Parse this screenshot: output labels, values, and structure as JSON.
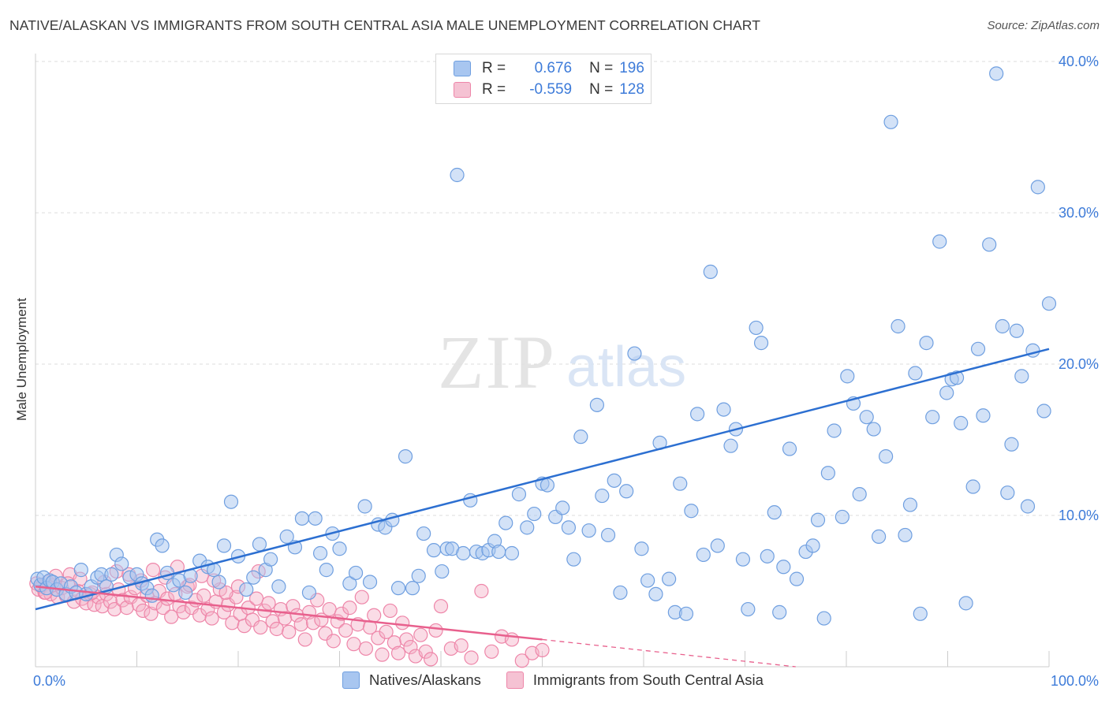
{
  "title": "NATIVE/ALASKAN VS IMMIGRANTS FROM SOUTH CENTRAL ASIA MALE UNEMPLOYMENT CORRELATION CHART",
  "source": "Source: ZipAtlas.com",
  "watermark": {
    "zip": "ZIP",
    "atlas": "atlas"
  },
  "stats": {
    "r_label": "R =",
    "n_label": "N =",
    "blue": {
      "r": "0.676",
      "n": "196"
    },
    "pink": {
      "r": "-0.559",
      "n": "128"
    }
  },
  "legend": {
    "blue": "Natives/Alaskans",
    "pink": "Immigrants from South Central Asia"
  },
  "colors": {
    "blue_fill": "#a8c6f0",
    "blue_stroke": "#6f9fe0",
    "blue_line": "#2c6fd1",
    "pink_fill": "#f5b2c8",
    "pink_stroke": "#ee86a9",
    "pink_line": "#e8608d",
    "grid": "#dddddd",
    "tick_text": "#3d7bd9"
  },
  "chart_data": {
    "type": "scatter",
    "title": "NATIVE/ALASKAN VS IMMIGRANTS FROM SOUTH CENTRAL ASIA MALE UNEMPLOYMENT CORRELATION CHART",
    "xlabel": "",
    "ylabel": "Male Unemployment",
    "xlim": [
      0,
      100
    ],
    "ylim": [
      0,
      40
    ],
    "x_tick_labels": [
      "0.0%",
      "100.0%"
    ],
    "y_ticks": [
      10,
      20,
      30,
      40
    ],
    "y_tick_labels": [
      "10.0%",
      "20.0%",
      "30.0%",
      "40.0%"
    ],
    "series": [
      {
        "name": "Natives/Alaskans",
        "trend": {
          "x": [
            0,
            100
          ],
          "y": [
            3.8,
            21.0
          ],
          "dashed_to": null
        },
        "points": [
          [
            0.2,
            5.8
          ],
          [
            0.5,
            5.4
          ],
          [
            0.8,
            5.9
          ],
          [
            1.1,
            5.2
          ],
          [
            1.4,
            5.7
          ],
          [
            1.7,
            5.6
          ],
          [
            2.1,
            5.1
          ],
          [
            2.5,
            5.5
          ],
          [
            3.0,
            4.8
          ],
          [
            3.5,
            5.3
          ],
          [
            4.0,
            4.9
          ],
          [
            4.5,
            6.4
          ],
          [
            5.0,
            4.8
          ],
          [
            5.5,
            5.3
          ],
          [
            6.1,
            5.9
          ],
          [
            6.5,
            6.1
          ],
          [
            7.0,
            5.3
          ],
          [
            7.5,
            6.1
          ],
          [
            8.0,
            7.4
          ],
          [
            8.5,
            6.8
          ],
          [
            9.3,
            5.9
          ],
          [
            10.0,
            6.1
          ],
          [
            10.5,
            5.5
          ],
          [
            11.0,
            5.2
          ],
          [
            11.5,
            4.7
          ],
          [
            12.0,
            8.4
          ],
          [
            12.5,
            8.0
          ],
          [
            13.0,
            6.2
          ],
          [
            13.6,
            5.4
          ],
          [
            14.2,
            5.7
          ],
          [
            14.8,
            4.9
          ],
          [
            15.3,
            6.0
          ],
          [
            16.2,
            7.0
          ],
          [
            17.0,
            6.6
          ],
          [
            17.6,
            6.4
          ],
          [
            18.1,
            5.6
          ],
          [
            18.6,
            8.0
          ],
          [
            19.3,
            10.9
          ],
          [
            20.0,
            7.3
          ],
          [
            20.8,
            5.1
          ],
          [
            21.5,
            5.9
          ],
          [
            22.1,
            8.1
          ],
          [
            22.7,
            6.4
          ],
          [
            23.2,
            7.1
          ],
          [
            24.0,
            5.3
          ],
          [
            24.8,
            8.6
          ],
          [
            25.6,
            7.9
          ],
          [
            26.3,
            9.8
          ],
          [
            27.0,
            4.9
          ],
          [
            27.6,
            9.8
          ],
          [
            28.1,
            7.5
          ],
          [
            28.7,
            6.4
          ],
          [
            29.3,
            8.8
          ],
          [
            30.0,
            7.8
          ],
          [
            31.0,
            5.5
          ],
          [
            31.6,
            6.2
          ],
          [
            32.5,
            10.6
          ],
          [
            33.0,
            5.6
          ],
          [
            33.8,
            9.4
          ],
          [
            34.5,
            9.2
          ],
          [
            35.2,
            9.7
          ],
          [
            35.8,
            5.2
          ],
          [
            36.5,
            13.9
          ],
          [
            37.2,
            5.2
          ],
          [
            37.8,
            6.0
          ],
          [
            38.3,
            8.8
          ],
          [
            39.3,
            7.7
          ],
          [
            40.1,
            6.3
          ],
          [
            40.6,
            7.8
          ],
          [
            41.1,
            7.8
          ],
          [
            41.6,
            32.5
          ],
          [
            42.2,
            7.5
          ],
          [
            42.9,
            11.0
          ],
          [
            43.5,
            7.6
          ],
          [
            44.1,
            7.5
          ],
          [
            44.7,
            7.7
          ],
          [
            45.3,
            8.3
          ],
          [
            45.7,
            7.6
          ],
          [
            46.4,
            9.5
          ],
          [
            47.0,
            7.5
          ],
          [
            47.7,
            11.4
          ],
          [
            48.5,
            9.2
          ],
          [
            49.2,
            10.1
          ],
          [
            50.0,
            12.1
          ],
          [
            50.5,
            12.0
          ],
          [
            51.3,
            9.9
          ],
          [
            52.0,
            10.5
          ],
          [
            52.6,
            9.2
          ],
          [
            53.1,
            7.1
          ],
          [
            53.8,
            15.2
          ],
          [
            54.6,
            9.0
          ],
          [
            55.4,
            17.3
          ],
          [
            55.9,
            11.3
          ],
          [
            56.5,
            8.7
          ],
          [
            57.1,
            12.3
          ],
          [
            57.7,
            4.9
          ],
          [
            58.3,
            11.6
          ],
          [
            59.1,
            20.7
          ],
          [
            59.8,
            7.8
          ],
          [
            60.4,
            5.7
          ],
          [
            61.2,
            4.8
          ],
          [
            61.6,
            14.8
          ],
          [
            62.5,
            5.8
          ],
          [
            63.1,
            3.6
          ],
          [
            63.6,
            12.1
          ],
          [
            64.2,
            3.5
          ],
          [
            64.7,
            10.3
          ],
          [
            65.3,
            16.7
          ],
          [
            65.9,
            7.4
          ],
          [
            66.6,
            26.1
          ],
          [
            67.3,
            8.0
          ],
          [
            67.9,
            17.0
          ],
          [
            68.6,
            14.6
          ],
          [
            69.1,
            15.7
          ],
          [
            69.8,
            7.1
          ],
          [
            70.3,
            3.8
          ],
          [
            71.1,
            22.4
          ],
          [
            71.6,
            21.4
          ],
          [
            72.2,
            7.3
          ],
          [
            72.9,
            10.2
          ],
          [
            73.4,
            3.6
          ],
          [
            73.8,
            6.6
          ],
          [
            74.4,
            14.4
          ],
          [
            75.1,
            5.8
          ],
          [
            76.0,
            7.6
          ],
          [
            76.7,
            8.0
          ],
          [
            77.2,
            9.7
          ],
          [
            77.8,
            3.2
          ],
          [
            78.2,
            12.8
          ],
          [
            78.8,
            15.6
          ],
          [
            79.6,
            9.9
          ],
          [
            80.1,
            19.2
          ],
          [
            80.7,
            17.4
          ],
          [
            81.3,
            11.4
          ],
          [
            82.0,
            16.5
          ],
          [
            82.7,
            15.7
          ],
          [
            83.2,
            8.6
          ],
          [
            83.9,
            13.9
          ],
          [
            84.4,
            36.0
          ],
          [
            85.1,
            22.5
          ],
          [
            85.8,
            8.7
          ],
          [
            86.3,
            10.7
          ],
          [
            86.8,
            19.4
          ],
          [
            87.3,
            3.5
          ],
          [
            87.9,
            21.4
          ],
          [
            88.5,
            16.5
          ],
          [
            89.2,
            28.1
          ],
          [
            89.9,
            18.1
          ],
          [
            90.4,
            19.0
          ],
          [
            90.9,
            19.1
          ],
          [
            91.3,
            16.1
          ],
          [
            91.8,
            4.2
          ],
          [
            92.5,
            11.9
          ],
          [
            93.0,
            21.0
          ],
          [
            93.5,
            16.6
          ],
          [
            94.1,
            27.9
          ],
          [
            94.8,
            39.2
          ],
          [
            95.4,
            22.5
          ],
          [
            95.9,
            11.5
          ],
          [
            96.3,
            14.7
          ],
          [
            96.8,
            22.2
          ],
          [
            97.3,
            19.2
          ],
          [
            97.9,
            10.6
          ],
          [
            98.4,
            20.9
          ],
          [
            98.9,
            31.7
          ],
          [
            99.5,
            16.9
          ],
          [
            100.0,
            24.0
          ]
        ]
      },
      {
        "name": "Immigrants from South Central Asia",
        "trend": {
          "x": [
            0,
            50
          ],
          "y": [
            5.3,
            1.8
          ],
          "dashed_to": [
            100,
            -1.4
          ]
        },
        "points": [
          [
            0.1,
            5.5
          ],
          [
            0.3,
            5.1
          ],
          [
            0.6,
            5.3
          ],
          [
            0.9,
            4.9
          ],
          [
            1.2,
            5.6
          ],
          [
            1.5,
            4.8
          ],
          [
            1.8,
            5.4
          ],
          [
            2.2,
            4.6
          ],
          [
            2.6,
            5.2
          ],
          [
            3.0,
            4.7
          ],
          [
            3.4,
            6.1
          ],
          [
            3.8,
            4.3
          ],
          [
            4.2,
            5.0
          ],
          [
            4.6,
            4.5
          ],
          [
            5.0,
            4.2
          ],
          [
            5.4,
            4.8
          ],
          [
            5.8,
            4.1
          ],
          [
            6.2,
            4.6
          ],
          [
            6.6,
            4.0
          ],
          [
            7.0,
            4.8
          ],
          [
            7.4,
            4.3
          ],
          [
            7.8,
            3.8
          ],
          [
            8.2,
            5.1
          ],
          [
            8.6,
            4.4
          ],
          [
            9.0,
            3.9
          ],
          [
            9.4,
            4.6
          ],
          [
            9.8,
            5.2
          ],
          [
            10.2,
            4.1
          ],
          [
            10.6,
            3.7
          ],
          [
            11.0,
            4.7
          ],
          [
            11.4,
            3.5
          ],
          [
            11.8,
            4.2
          ],
          [
            12.2,
            5.0
          ],
          [
            12.6,
            3.9
          ],
          [
            13.0,
            4.5
          ],
          [
            13.4,
            3.3
          ],
          [
            13.8,
            4.8
          ],
          [
            14.2,
            4.0
          ],
          [
            14.6,
            3.6
          ],
          [
            15.0,
            5.3
          ],
          [
            15.4,
            3.9
          ],
          [
            15.8,
            4.4
          ],
          [
            16.2,
            3.4
          ],
          [
            16.6,
            4.7
          ],
          [
            17.0,
            3.8
          ],
          [
            17.4,
            3.2
          ],
          [
            17.8,
            4.3
          ],
          [
            18.2,
            5.1
          ],
          [
            18.6,
            3.6
          ],
          [
            19.0,
            4.1
          ],
          [
            19.4,
            2.9
          ],
          [
            19.8,
            4.6
          ],
          [
            20.2,
            3.5
          ],
          [
            20.6,
            2.7
          ],
          [
            21.0,
            3.9
          ],
          [
            21.4,
            3.1
          ],
          [
            21.8,
            4.5
          ],
          [
            22.2,
            2.6
          ],
          [
            22.6,
            3.7
          ],
          [
            23.0,
            4.2
          ],
          [
            23.4,
            3.0
          ],
          [
            23.8,
            2.5
          ],
          [
            24.2,
            3.8
          ],
          [
            24.6,
            3.2
          ],
          [
            25.0,
            2.3
          ],
          [
            25.4,
            4.0
          ],
          [
            25.8,
            3.4
          ],
          [
            26.2,
            2.8
          ],
          [
            26.6,
            1.8
          ],
          [
            27.0,
            3.6
          ],
          [
            27.4,
            2.9
          ],
          [
            27.8,
            4.4
          ],
          [
            28.2,
            3.1
          ],
          [
            28.6,
            2.2
          ],
          [
            29.0,
            3.8
          ],
          [
            29.4,
            1.7
          ],
          [
            29.8,
            3.0
          ],
          [
            30.2,
            3.5
          ],
          [
            30.6,
            2.4
          ],
          [
            31.0,
            3.9
          ],
          [
            31.4,
            1.5
          ],
          [
            31.8,
            2.8
          ],
          [
            32.2,
            4.6
          ],
          [
            32.6,
            1.2
          ],
          [
            33.0,
            2.6
          ],
          [
            33.4,
            3.4
          ],
          [
            33.8,
            1.9
          ],
          [
            34.2,
            0.8
          ],
          [
            34.6,
            2.3
          ],
          [
            35.0,
            3.7
          ],
          [
            35.4,
            1.6
          ],
          [
            35.8,
            0.9
          ],
          [
            36.2,
            2.9
          ],
          [
            36.6,
            1.8
          ],
          [
            37.0,
            1.3
          ],
          [
            37.5,
            0.7
          ],
          [
            38.0,
            2.1
          ],
          [
            38.5,
            1.0
          ],
          [
            39.0,
            0.5
          ],
          [
            39.5,
            2.4
          ],
          [
            40.0,
            4.0
          ],
          [
            41.0,
            1.2
          ],
          [
            42.0,
            1.4
          ],
          [
            43.0,
            0.6
          ],
          [
            44.0,
            5.0
          ],
          [
            45.0,
            1.0
          ],
          [
            46.0,
            2.0
          ],
          [
            47.0,
            1.8
          ],
          [
            48.0,
            0.4
          ],
          [
            49.0,
            0.9
          ],
          [
            50.0,
            1.1
          ],
          [
            1.0,
            4.9
          ],
          [
            2.0,
            6.0
          ],
          [
            3.2,
            5.5
          ],
          [
            4.4,
            5.8
          ],
          [
            5.6,
            4.9
          ],
          [
            6.8,
            5.6
          ],
          [
            8.0,
            6.3
          ],
          [
            9.2,
            6.1
          ],
          [
            10.4,
            5.7
          ],
          [
            11.6,
            6.4
          ],
          [
            12.8,
            5.9
          ],
          [
            14.0,
            6.6
          ],
          [
            15.2,
            5.4
          ],
          [
            16.4,
            6.0
          ],
          [
            17.6,
            5.7
          ],
          [
            18.8,
            4.9
          ],
          [
            20.0,
            5.3
          ],
          [
            22.0,
            6.3
          ]
        ]
      }
    ]
  }
}
